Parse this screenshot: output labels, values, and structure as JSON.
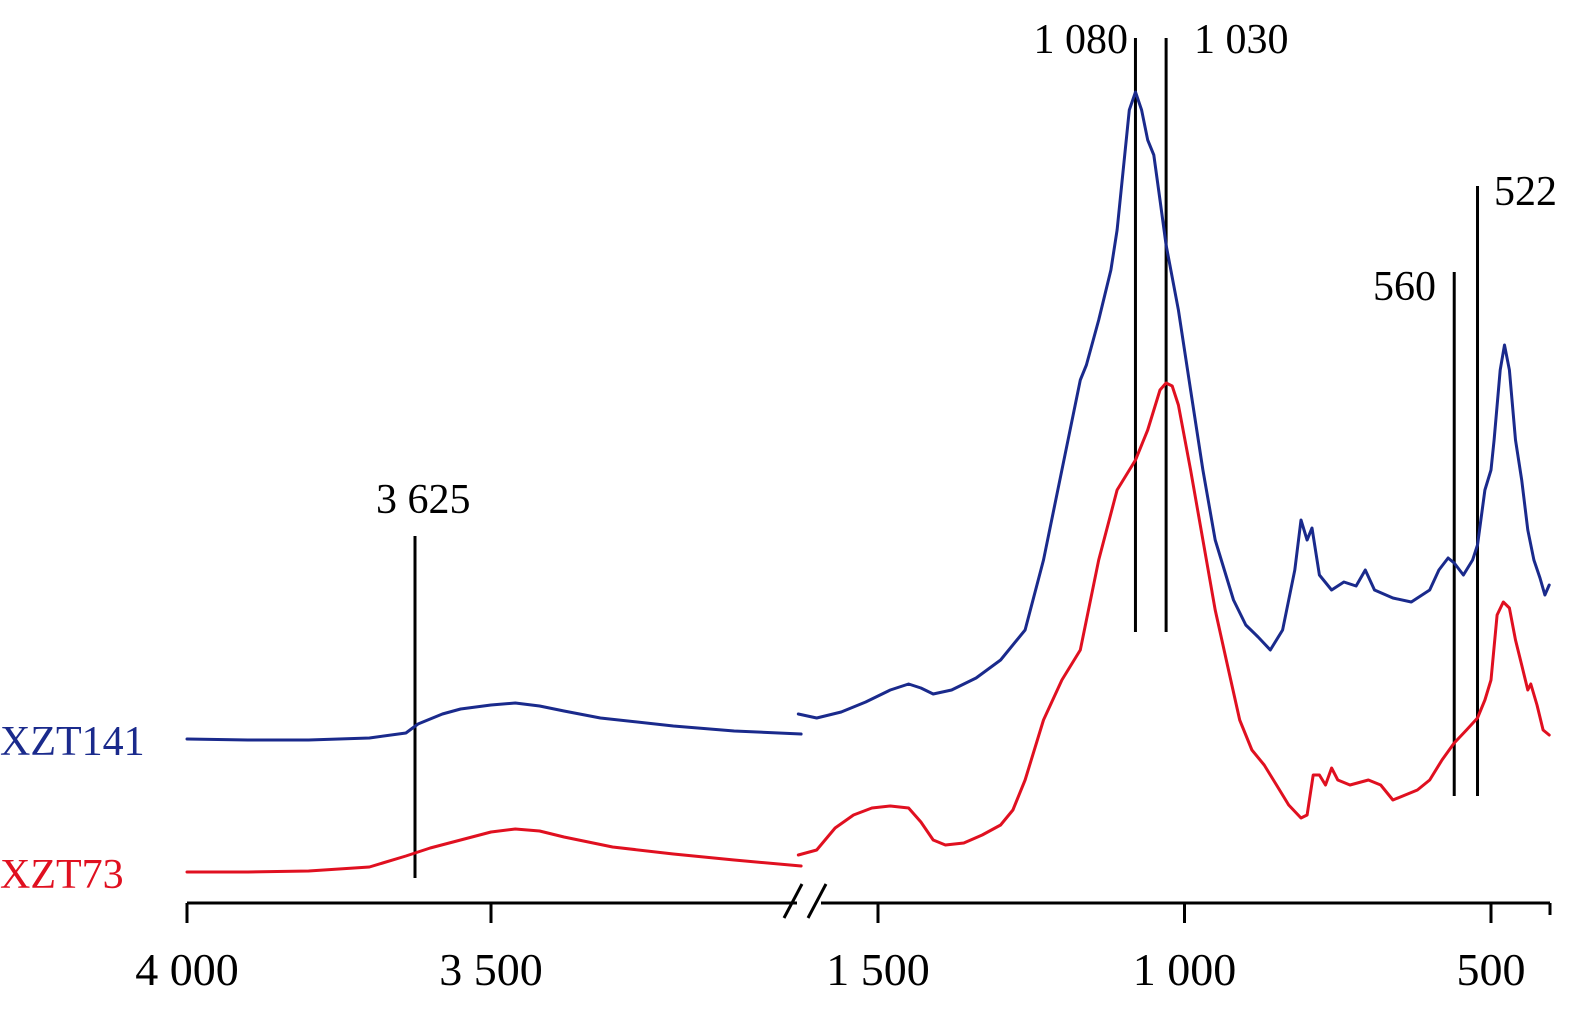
{
  "chart_data": {
    "type": "line",
    "title": "",
    "xlabel": "",
    "ylabel": "",
    "axis_break": {
      "left_segment": [
        4000,
        2990
      ],
      "right_segment": [
        1630,
        405
      ]
    },
    "x_ticks": [
      {
        "value": 4000,
        "label": "4 000"
      },
      {
        "value": 3500,
        "label": "3 500"
      },
      {
        "value": 1500,
        "label": "1 500"
      },
      {
        "value": 1000,
        "label": "1 000"
      },
      {
        "value": 500,
        "label": "500"
      }
    ],
    "peak_markers": [
      {
        "value": 3625,
        "label": "3 625"
      },
      {
        "value": 1080,
        "label": "1 080"
      },
      {
        "value": 1030,
        "label": "1 030"
      },
      {
        "value": 560,
        "label": "560"
      },
      {
        "value": 522,
        "label": "522"
      }
    ],
    "series": [
      {
        "name": "XZT141",
        "color": "#1a2a8c",
        "points": [
          [
            4000,
            739
          ],
          [
            3900,
            740
          ],
          [
            3800,
            740
          ],
          [
            3700,
            738
          ],
          [
            3640,
            733
          ],
          [
            3620,
            724
          ],
          [
            3580,
            714
          ],
          [
            3550,
            709
          ],
          [
            3500,
            705
          ],
          [
            3460,
            703
          ],
          [
            3420,
            706
          ],
          [
            3380,
            711
          ],
          [
            3320,
            718
          ],
          [
            3200,
            726
          ],
          [
            3100,
            731
          ],
          [
            2990,
            734
          ],
          [
            1630,
            714
          ],
          [
            1600,
            718
          ],
          [
            1560,
            712
          ],
          [
            1520,
            702
          ],
          [
            1480,
            690
          ],
          [
            1450,
            684
          ],
          [
            1430,
            688
          ],
          [
            1410,
            694
          ],
          [
            1380,
            690
          ],
          [
            1340,
            678
          ],
          [
            1300,
            660
          ],
          [
            1260,
            630
          ],
          [
            1230,
            560
          ],
          [
            1200,
            470
          ],
          [
            1170,
            380
          ],
          [
            1160,
            365
          ],
          [
            1140,
            320
          ],
          [
            1120,
            270
          ],
          [
            1110,
            230
          ],
          [
            1100,
            170
          ],
          [
            1090,
            110
          ],
          [
            1080,
            92
          ],
          [
            1070,
            110
          ],
          [
            1060,
            140
          ],
          [
            1050,
            155
          ],
          [
            1040,
            200
          ],
          [
            1030,
            245
          ],
          [
            1010,
            310
          ],
          [
            990,
            390
          ],
          [
            970,
            470
          ],
          [
            950,
            540
          ],
          [
            920,
            600
          ],
          [
            900,
            625
          ],
          [
            880,
            637
          ],
          [
            860,
            650
          ],
          [
            840,
            630
          ],
          [
            820,
            570
          ],
          [
            810,
            520
          ],
          [
            800,
            540
          ],
          [
            792,
            528
          ],
          [
            780,
            575
          ],
          [
            760,
            590
          ],
          [
            740,
            582
          ],
          [
            720,
            586
          ],
          [
            705,
            570
          ],
          [
            690,
            590
          ],
          [
            660,
            598
          ],
          [
            630,
            602
          ],
          [
            600,
            590
          ],
          [
            585,
            570
          ],
          [
            570,
            558
          ],
          [
            560,
            563
          ],
          [
            545,
            575
          ],
          [
            530,
            560
          ],
          [
            522,
            545
          ],
          [
            510,
            490
          ],
          [
            500,
            470
          ],
          [
            495,
            440
          ],
          [
            485,
            370
          ],
          [
            478,
            345
          ],
          [
            470,
            370
          ],
          [
            460,
            440
          ],
          [
            450,
            480
          ],
          [
            440,
            530
          ],
          [
            430,
            560
          ],
          [
            420,
            578
          ],
          [
            412,
            595
          ],
          [
            405,
            585
          ]
        ]
      },
      {
        "name": "XZT73",
        "color": "#e01020",
        "points": [
          [
            4000,
            872
          ],
          [
            3900,
            872
          ],
          [
            3800,
            871
          ],
          [
            3700,
            867
          ],
          [
            3640,
            856
          ],
          [
            3600,
            848
          ],
          [
            3550,
            840
          ],
          [
            3500,
            832
          ],
          [
            3460,
            829
          ],
          [
            3420,
            831
          ],
          [
            3380,
            837
          ],
          [
            3300,
            847
          ],
          [
            3200,
            854
          ],
          [
            3100,
            860
          ],
          [
            2990,
            866
          ],
          [
            1630,
            855
          ],
          [
            1600,
            850
          ],
          [
            1570,
            828
          ],
          [
            1540,
            815
          ],
          [
            1510,
            808
          ],
          [
            1480,
            806
          ],
          [
            1450,
            808
          ],
          [
            1430,
            822
          ],
          [
            1410,
            840
          ],
          [
            1390,
            845
          ],
          [
            1360,
            843
          ],
          [
            1330,
            835
          ],
          [
            1300,
            825
          ],
          [
            1280,
            810
          ],
          [
            1260,
            780
          ],
          [
            1230,
            720
          ],
          [
            1200,
            680
          ],
          [
            1170,
            650
          ],
          [
            1140,
            560
          ],
          [
            1110,
            490
          ],
          [
            1080,
            460
          ],
          [
            1060,
            430
          ],
          [
            1040,
            390
          ],
          [
            1030,
            383
          ],
          [
            1020,
            386
          ],
          [
            1010,
            405
          ],
          [
            990,
            470
          ],
          [
            970,
            540
          ],
          [
            950,
            610
          ],
          [
            930,
            665
          ],
          [
            910,
            720
          ],
          [
            890,
            750
          ],
          [
            870,
            765
          ],
          [
            850,
            785
          ],
          [
            830,
            805
          ],
          [
            810,
            818
          ],
          [
            800,
            815
          ],
          [
            790,
            775
          ],
          [
            780,
            775
          ],
          [
            770,
            785
          ],
          [
            760,
            768
          ],
          [
            750,
            780
          ],
          [
            730,
            785
          ],
          [
            700,
            780
          ],
          [
            680,
            785
          ],
          [
            660,
            800
          ],
          [
            640,
            795
          ],
          [
            620,
            790
          ],
          [
            600,
            780
          ],
          [
            580,
            760
          ],
          [
            560,
            743
          ],
          [
            540,
            730
          ],
          [
            522,
            718
          ],
          [
            510,
            700
          ],
          [
            500,
            680
          ],
          [
            490,
            615
          ],
          [
            480,
            602
          ],
          [
            470,
            608
          ],
          [
            460,
            640
          ],
          [
            450,
            665
          ],
          [
            440,
            690
          ],
          [
            435,
            684
          ],
          [
            425,
            705
          ],
          [
            415,
            730
          ],
          [
            405,
            735
          ]
        ]
      }
    ]
  }
}
